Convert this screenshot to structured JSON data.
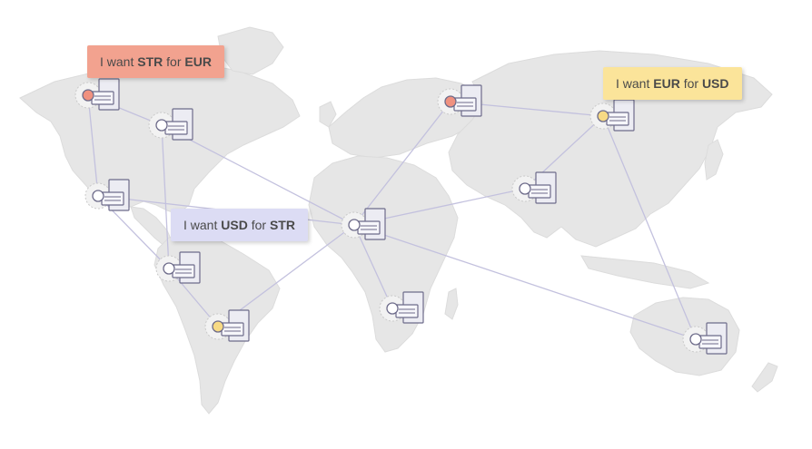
{
  "colors": {
    "continent": "#e6e6e6",
    "link": "#c3c1de",
    "node_red": "#f0917f",
    "node_yellow": "#f7da84",
    "node_white": "#ffffff",
    "bubble_red": "#f2a28f",
    "bubble_yellow": "#fbe49a",
    "bubble_blue": "#dcdcf4"
  },
  "requests": [
    {
      "prefix": "I want ",
      "want": "STR",
      "mid": " for ",
      "give": "EUR",
      "color": "red"
    },
    {
      "prefix": "I want ",
      "want": "EUR",
      "mid": " for ",
      "give": "USD",
      "color": "yellow"
    },
    {
      "prefix": "I want ",
      "want": "USD",
      "mid": " for ",
      "give": "STR",
      "color": "blue"
    }
  ],
  "nodes": [
    {
      "id": "alaska",
      "status": "red"
    },
    {
      "id": "canada",
      "status": "white"
    },
    {
      "id": "usa",
      "status": "white"
    },
    {
      "id": "colombia",
      "status": "white"
    },
    {
      "id": "brazil",
      "status": "yellow"
    },
    {
      "id": "europe",
      "status": "red"
    },
    {
      "id": "russia",
      "status": "yellow"
    },
    {
      "id": "india",
      "status": "white"
    },
    {
      "id": "west-africa",
      "status": "white"
    },
    {
      "id": "south-africa",
      "status": "white"
    },
    {
      "id": "australia",
      "status": "white"
    }
  ]
}
